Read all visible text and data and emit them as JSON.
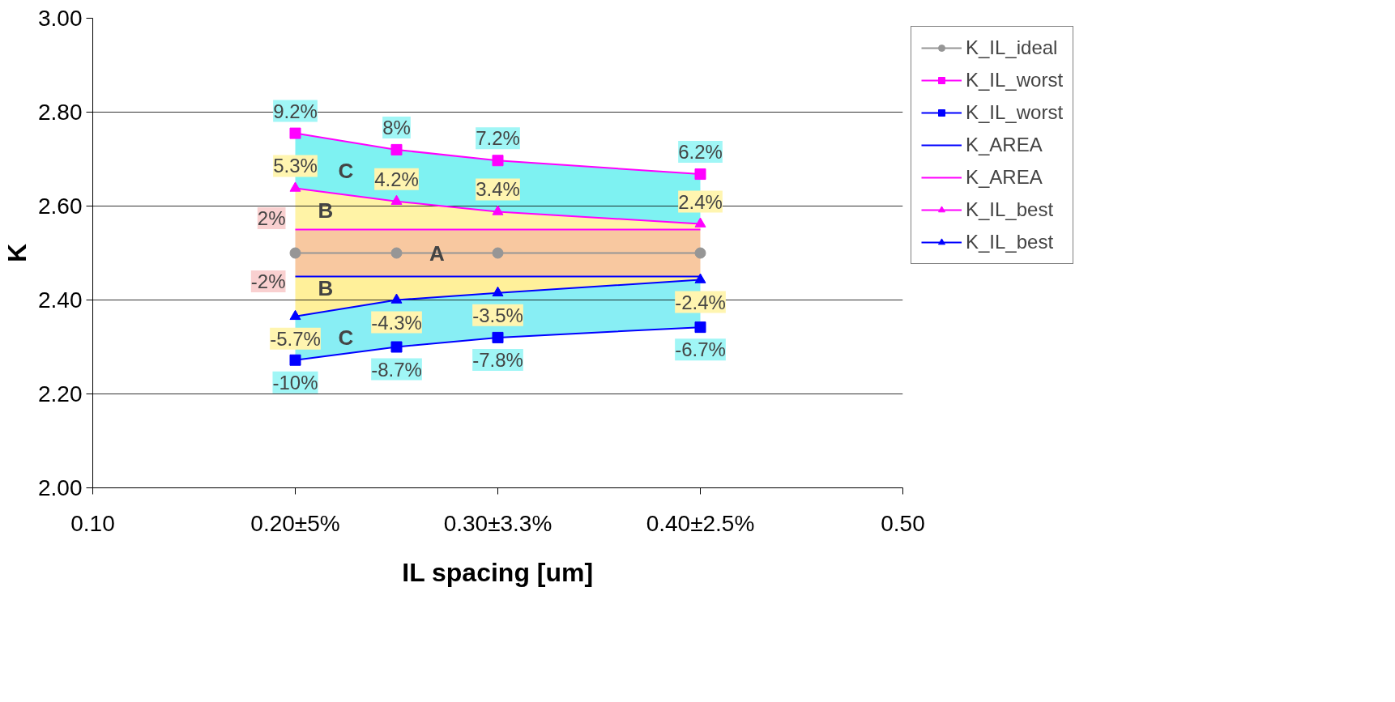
{
  "chart_data": {
    "type": "line",
    "xlabel": "IL spacing [um]",
    "ylabel": "K",
    "x": [
      0.2,
      0.25,
      0.3,
      0.4
    ],
    "xlim": [
      0.1,
      0.5
    ],
    "xticks": [
      {
        "value": 0.1,
        "label": "0.10"
      },
      {
        "value": 0.2,
        "label": "0.20±5%"
      },
      {
        "value": 0.3,
        "label": "0.30±3.3%"
      },
      {
        "value": 0.4,
        "label": "0.40±2.5%"
      },
      {
        "value": 0.5,
        "label": "0.50"
      }
    ],
    "ylim": [
      2.0,
      3.0
    ],
    "yticks": [
      {
        "value": 2.0,
        "label": "2.00"
      },
      {
        "value": 2.2,
        "label": "2.20"
      },
      {
        "value": 2.4,
        "label": "2.40"
      },
      {
        "value": 2.6,
        "label": "2.60"
      },
      {
        "value": 2.8,
        "label": "2.80"
      },
      {
        "value": 3.0,
        "label": "3.00"
      }
    ],
    "grid": "y",
    "legend": "right",
    "series": [
      {
        "name": "K_IL_ideal",
        "color": "#969696",
        "marker": "circle",
        "values": [
          2.5,
          2.5,
          2.5,
          2.5
        ]
      },
      {
        "name": "K_IL_worst",
        "color": "#ff00ff",
        "marker": "square",
        "values": [
          2.755,
          2.72,
          2.697,
          2.668
        ],
        "lower": [
          2.638,
          2.61,
          2.588,
          2.562
        ],
        "upper": [
          2.755,
          2.72,
          2.697,
          2.668
        ]
      },
      {
        "name": "K_IL_worst",
        "color": "#0000ff",
        "marker": "square",
        "values": [
          2.272,
          2.3,
          2.32,
          2.342
        ],
        "lower": [
          2.272,
          2.3,
          2.32,
          2.342
        ],
        "upper": [
          2.365,
          2.4,
          2.415,
          2.443
        ]
      },
      {
        "name": "K_AREA",
        "color": "#0000ff",
        "marker": "none",
        "values": [
          2.45,
          2.45,
          2.45,
          2.45
        ],
        "lower": [
          2.45,
          2.45,
          2.45,
          2.45
        ],
        "upper": [
          2.55,
          2.55,
          2.55,
          2.55
        ]
      },
      {
        "name": "K_AREA",
        "color": "#ff00ff",
        "marker": "none",
        "values": [
          2.55,
          2.55,
          2.55,
          2.55
        ]
      },
      {
        "name": "K_IL_best",
        "color": "#ff00ff",
        "marker": "triangle",
        "values": [
          2.638,
          2.61,
          2.588,
          2.562
        ],
        "lower": [
          2.55,
          2.55,
          2.55,
          2.55
        ],
        "upper": [
          2.638,
          2.61,
          2.588,
          2.562
        ]
      },
      {
        "name": "K_IL_best",
        "color": "#0000ff",
        "marker": "triangle",
        "values": [
          2.365,
          2.4,
          2.415,
          2.443
        ],
        "lower": [
          2.365,
          2.4,
          2.415,
          2.443
        ],
        "upper": [
          2.45,
          2.45,
          2.45,
          2.45
        ]
      }
    ],
    "annotations": [
      {
        "text": "9.2%",
        "x": 0.2,
        "y": 2.755
      },
      {
        "text": "8%",
        "x": 0.25,
        "y": 2.72
      },
      {
        "text": "7.2%",
        "x": 0.3,
        "y": 2.697
      },
      {
        "text": "6.2%",
        "x": 0.4,
        "y": 2.668
      },
      {
        "text": "5.3%",
        "x": 0.2,
        "y": 2.638
      },
      {
        "text": "4.2%",
        "x": 0.25,
        "y": 2.61
      },
      {
        "text": "3.4%",
        "x": 0.3,
        "y": 2.588
      },
      {
        "text": "2.4%",
        "x": 0.4,
        "y": 2.562
      },
      {
        "text": "2%",
        "x": 0.2,
        "y": 2.55
      },
      {
        "text": "-2%",
        "x": 0.2,
        "y": 2.45
      },
      {
        "text": "-5.7%",
        "x": 0.2,
        "y": 2.365
      },
      {
        "text": "-4.3%",
        "x": 0.25,
        "y": 2.4
      },
      {
        "text": "-3.5%",
        "x": 0.3,
        "y": 2.415
      },
      {
        "text": "-2.4%",
        "x": 0.4,
        "y": 2.443
      },
      {
        "text": "-10%",
        "x": 0.2,
        "y": 2.272
      },
      {
        "text": "-8.7%",
        "x": 0.25,
        "y": 2.3
      },
      {
        "text": "-7.8%",
        "x": 0.3,
        "y": 2.32
      },
      {
        "text": "-6.7%",
        "x": 0.4,
        "y": 2.342
      },
      {
        "text": "A",
        "x": 0.27,
        "y": 2.5
      },
      "B",
      "B",
      "C",
      "C"
    ]
  }
}
